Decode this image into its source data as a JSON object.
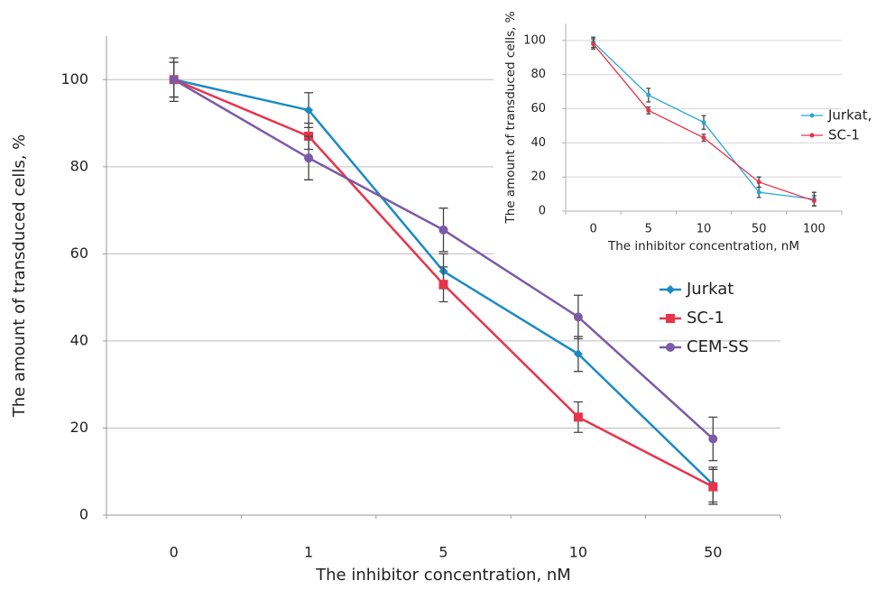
{
  "chart_data": [
    {
      "type": "line",
      "x_label": "The inhibitor concentration, nM",
      "y_label": "The amount of transduced cells, %",
      "categories": [
        "0",
        "1",
        "5",
        "10",
        "50"
      ],
      "ylim": [
        0,
        110
      ],
      "yticks": [
        0,
        20,
        40,
        60,
        80,
        100
      ],
      "grid": true,
      "legend": "center right",
      "series": [
        {
          "name": "Jurkat",
          "color": "#1a8ac6",
          "marker": "diamond",
          "values": [
            100,
            93,
            56,
            37,
            7
          ],
          "errors": [
            4,
            4,
            4,
            4,
            4
          ]
        },
        {
          "name": "SC-1",
          "color": "#e8334a",
          "marker": "square",
          "values": [
            100,
            87,
            53,
            22.5,
            6.5
          ],
          "errors": [
            4,
            3,
            4,
            3.5,
            4
          ]
        },
        {
          "name": "CEM-SS",
          "color": "#7b5aa6",
          "marker": "circle",
          "values": [
            100,
            82,
            65.5,
            45.5,
            17.5
          ],
          "errors": [
            5,
            5,
            5,
            5,
            5
          ]
        }
      ]
    },
    {
      "type": "line",
      "x_label": "The inhibitor concentration, nM",
      "y_label": "The amount of transduced cells, %",
      "categories": [
        "0",
        "5",
        "10",
        "50",
        "100"
      ],
      "ylim": [
        0,
        110
      ],
      "yticks": [
        0,
        20,
        40,
        60,
        80,
        100
      ],
      "grid": true,
      "legend": "right",
      "series": [
        {
          "name": "Jurkat,",
          "color": "#29a6d6",
          "marker": "dot",
          "values": [
            99,
            68,
            52,
            11,
            7
          ],
          "errors": [
            3,
            4,
            4,
            3,
            4
          ]
        },
        {
          "name": "SC-1",
          "color": "#e8334a",
          "marker": "dot",
          "values": [
            98,
            59,
            43,
            17,
            6
          ],
          "errors": [
            3,
            2,
            2,
            3,
            3
          ]
        }
      ]
    }
  ]
}
